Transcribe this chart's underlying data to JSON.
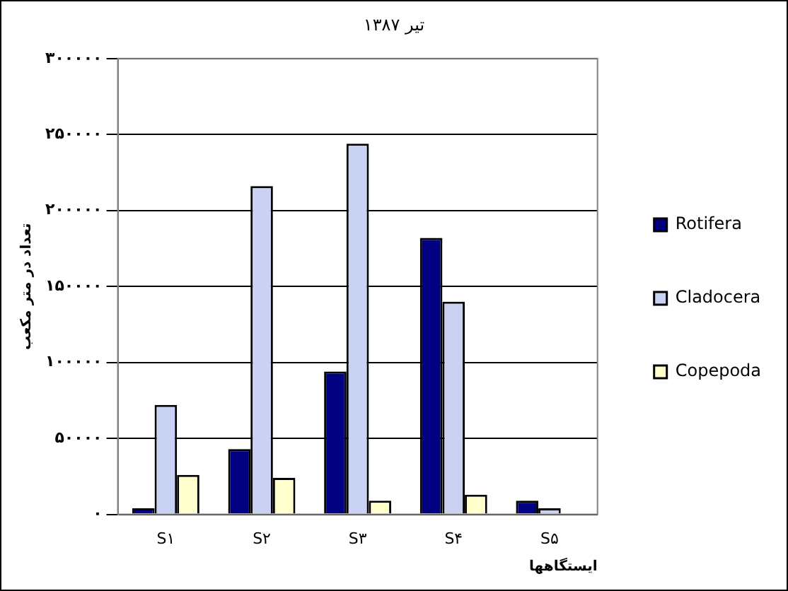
{
  "chart_data": {
    "type": "bar",
    "title": "تیر ۱۳۸۷",
    "xlabel": "ایستگاهها",
    "ylabel": "تعداد در متر مکعب",
    "categories": [
      "S۱",
      "S۲",
      "S۳",
      "S۴",
      "S۵"
    ],
    "series": [
      {
        "name": "Rotifera",
        "color": "#000080",
        "values": [
          4000,
          43000,
          94000,
          182000,
          9000
        ]
      },
      {
        "name": "Cladocera",
        "color": "#c9d2f2",
        "values": [
          72000,
          216000,
          244000,
          140000,
          4000
        ]
      },
      {
        "name": "Copepoda",
        "color": "#ffffcc",
        "values": [
          26000,
          24000,
          9000,
          13000,
          0
        ]
      }
    ],
    "ylim": [
      0,
      300000
    ],
    "yticks": [
      {
        "value": 0,
        "label": "۰"
      },
      {
        "value": 50000,
        "label": "۵۰۰۰۰"
      },
      {
        "value": 100000,
        "label": "۱۰۰۰۰۰"
      },
      {
        "value": 150000,
        "label": "۱۵۰۰۰۰"
      },
      {
        "value": 200000,
        "label": "۲۰۰۰۰۰"
      },
      {
        "value": 250000,
        "label": "۲۵۰۰۰۰"
      },
      {
        "value": 300000,
        "label": "۳۰۰۰۰۰"
      }
    ],
    "grid": "y",
    "legend": "right"
  }
}
